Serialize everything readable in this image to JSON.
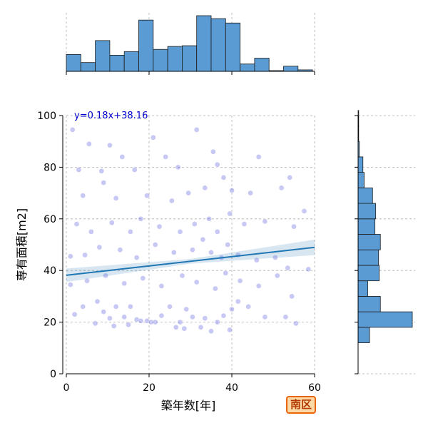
{
  "chart_data": {
    "type": "scatter",
    "xlabel": "築年数[年]",
    "ylabel": "専有面積[m2]",
    "xlim": [
      0,
      60
    ],
    "ylim": [
      0,
      100
    ],
    "xticks": [
      "0",
      "20",
      "40",
      "60"
    ],
    "yticks": [
      "0",
      "20",
      "40",
      "60",
      "80",
      "100"
    ],
    "grid": true,
    "regression": {
      "label": "y=0.18x+38.16",
      "slope": 0.18,
      "intercept": 38.16,
      "color": "#1f77b4"
    },
    "point_color": "#3a3ad8",
    "hist_color": "#5a9bd3",
    "points_sample": [
      [
        1.5,
        94.5
      ],
      [
        10.5,
        88.5
      ],
      [
        5.5,
        89.0
      ],
      [
        21.0,
        91.5
      ],
      [
        24.0,
        84.0
      ],
      [
        31.5,
        94.5
      ],
      [
        46.5,
        84.0
      ],
      [
        3.0,
        79.0
      ],
      [
        8.5,
        78.5
      ],
      [
        13.5,
        84.0
      ],
      [
        16.5,
        79.0
      ],
      [
        27.0,
        80.0
      ],
      [
        35.5,
        86.0
      ],
      [
        36.5,
        81.0
      ],
      [
        4.0,
        69.0
      ],
      [
        9.0,
        74.0
      ],
      [
        12.0,
        68.0
      ],
      [
        19.5,
        69.0
      ],
      [
        25.5,
        67.0
      ],
      [
        29.5,
        70.0
      ],
      [
        33.5,
        72.0
      ],
      [
        38.0,
        76.0
      ],
      [
        40.0,
        71.0
      ],
      [
        44.5,
        70.0
      ],
      [
        52.0,
        72.0
      ],
      [
        54.0,
        76.0
      ],
      [
        57.5,
        63.0
      ],
      [
        2.5,
        58.0
      ],
      [
        6.0,
        55.0
      ],
      [
        11.0,
        58.5
      ],
      [
        15.5,
        55.0
      ],
      [
        18.0,
        60.0
      ],
      [
        22.5,
        57.0
      ],
      [
        27.5,
        55.0
      ],
      [
        31.0,
        58.0
      ],
      [
        34.5,
        60.0
      ],
      [
        36.5,
        55.0
      ],
      [
        39.5,
        62.0
      ],
      [
        43.0,
        58.0
      ],
      [
        48.0,
        59.0
      ],
      [
        55.0,
        57.0
      ],
      [
        1.0,
        45.5
      ],
      [
        4.5,
        46.0
      ],
      [
        8.0,
        49.0
      ],
      [
        13.0,
        48.0
      ],
      [
        17.0,
        45.0
      ],
      [
        21.5,
        50.0
      ],
      [
        26.0,
        47.0
      ],
      [
        30.5,
        48.0
      ],
      [
        33.0,
        52.0
      ],
      [
        35.0,
        47.0
      ],
      [
        37.5,
        45.0
      ],
      [
        39.0,
        50.0
      ],
      [
        41.5,
        46.0
      ],
      [
        46.0,
        44.0
      ],
      [
        50.5,
        45.0
      ],
      [
        53.5,
        41.0
      ],
      [
        58.5,
        40.5
      ],
      [
        1.0,
        34.5
      ],
      [
        5.0,
        36.0
      ],
      [
        9.5,
        38.0
      ],
      [
        14.0,
        35.0
      ],
      [
        18.5,
        37.0
      ],
      [
        23.0,
        34.0
      ],
      [
        28.0,
        38.0
      ],
      [
        31.5,
        35.5
      ],
      [
        36.0,
        33.0
      ],
      [
        38.5,
        39.0
      ],
      [
        42.0,
        36.0
      ],
      [
        46.5,
        34.0
      ],
      [
        51.0,
        38.0
      ],
      [
        54.5,
        30.0
      ],
      [
        2.0,
        23.0
      ],
      [
        4.0,
        26.0
      ],
      [
        7.5,
        28.0
      ],
      [
        9.0,
        24.0
      ],
      [
        10.5,
        21.5
      ],
      [
        12.0,
        26.0
      ],
      [
        14.0,
        22.0
      ],
      [
        15.5,
        26.0
      ],
      [
        17.0,
        21.0
      ],
      [
        18.0,
        20.5
      ],
      [
        19.5,
        20.5
      ],
      [
        20.5,
        20.0
      ],
      [
        21.5,
        20.0
      ],
      [
        23.0,
        22.5
      ],
      [
        25.0,
        26.0
      ],
      [
        27.5,
        20.0
      ],
      [
        29.0,
        25.0
      ],
      [
        30.5,
        22.0
      ],
      [
        32.5,
        18.0
      ],
      [
        33.5,
        21.5
      ],
      [
        35.0,
        16.5
      ],
      [
        36.5,
        20.0
      ],
      [
        38.0,
        22.5
      ],
      [
        39.5,
        17.0
      ],
      [
        40.0,
        25.0
      ],
      [
        41.5,
        28.0
      ],
      [
        44.0,
        26.0
      ],
      [
        48.0,
        22.0
      ],
      [
        53.0,
        22.0
      ],
      [
        55.5,
        19.5
      ],
      [
        7.0,
        19.5
      ],
      [
        11.5,
        18.5
      ],
      [
        15.0,
        19.0
      ],
      [
        26.5,
        18.0
      ],
      [
        28.5,
        17.5
      ]
    ],
    "top_histogram": {
      "bin_edges": [
        0,
        3.5,
        7,
        10.5,
        14,
        17.5,
        21,
        24.5,
        28,
        31.5,
        35,
        38.5,
        42,
        45.5,
        49,
        52.5,
        56,
        59.5
      ],
      "counts": [
        23,
        12,
        42,
        22,
        27,
        70,
        30,
        34,
        35,
        76,
        72,
        66,
        10,
        18,
        1,
        7,
        2
      ]
    },
    "right_histogram": {
      "bin_edges": [
        12,
        18,
        24,
        30,
        36,
        42,
        48,
        54,
        60,
        66,
        72,
        78,
        84,
        90,
        96,
        102
      ],
      "counts": [
        19,
        90,
        37,
        16,
        35,
        34,
        37,
        28,
        29,
        24,
        10,
        8,
        2,
        1,
        1
      ]
    },
    "region_badge": "南区"
  }
}
